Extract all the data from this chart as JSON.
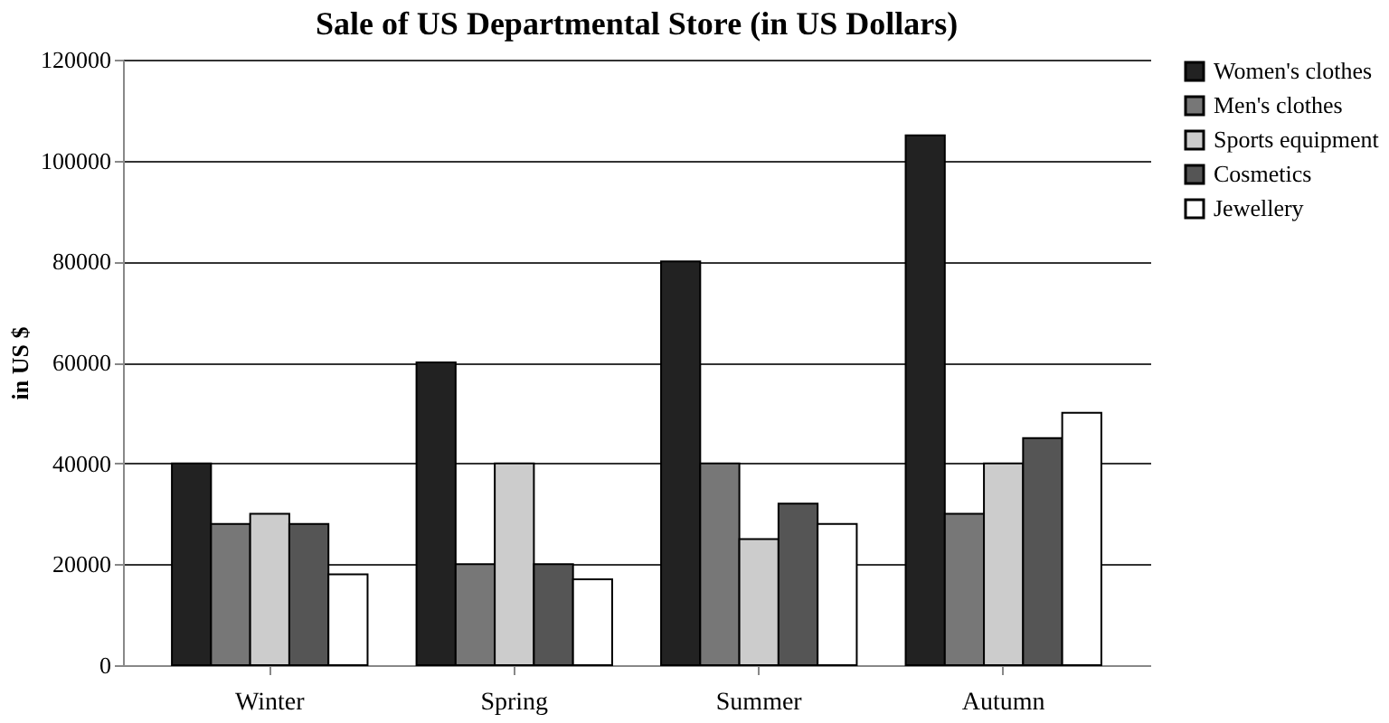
{
  "chart_data": {
    "type": "bar",
    "title": "Sale of US Departmental Store (in US Dollars)",
    "ylabel": "in US $",
    "categories": [
      "Winter",
      "Spring",
      "Summer",
      "Autumn"
    ],
    "series": [
      {
        "name": "Women's clothes",
        "color": "#222222",
        "values": [
          40000,
          60000,
          80000,
          105000
        ]
      },
      {
        "name": "Men's clothes",
        "color": "#777777",
        "values": [
          28000,
          20000,
          40000,
          30000
        ]
      },
      {
        "name": "Sports equipment",
        "color": "#cccccc",
        "values": [
          30000,
          40000,
          25000,
          40000
        ]
      },
      {
        "name": "Cosmetics",
        "color": "#555555",
        "values": [
          28000,
          20000,
          32000,
          45000
        ]
      },
      {
        "name": "Jewellery",
        "color": "#ffffff",
        "values": [
          18000,
          17000,
          28000,
          50000
        ]
      }
    ],
    "ylim": [
      0,
      120000
    ],
    "yticks": [
      0,
      20000,
      40000,
      60000,
      80000,
      100000,
      120000
    ],
    "grid": "y",
    "legend": "right"
  }
}
